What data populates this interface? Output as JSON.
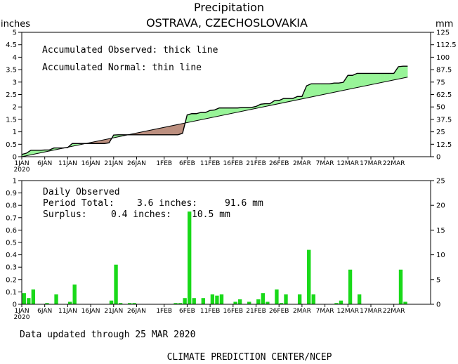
{
  "title": "Precipitation",
  "subtitle": "OSTRAVA, CZECHOSLOVAKIA",
  "updated": "Data updated through 25 MAR 2020",
  "credit": "CLIMATE PREDICTION CENTER/NCEP",
  "colors": {
    "surplus_fill": "#98f498",
    "deficit_fill": "#bc8f7f",
    "daily_bar": "#19d919"
  },
  "chart_data": [
    {
      "type": "area",
      "ylabel_left": "inches",
      "ylabel_right": "mm",
      "ylim": [
        0,
        5
      ],
      "ylim_right": [
        0,
        125
      ],
      "xlim": [
        0,
        89
      ],
      "yticks_left": [
        "0",
        "0.5",
        "1",
        "1.5",
        "2",
        "2.5",
        "3",
        "3.5",
        "4",
        "4.5",
        "5"
      ],
      "yticks_right": [
        "0",
        "12.5",
        "25",
        "37.5",
        "50",
        "62.5",
        "75",
        "87.5",
        "100",
        "112.5",
        "125"
      ],
      "x_tick_labels": [
        "1JAN",
        "6JAN",
        "11JAN",
        "16JAN",
        "21JAN",
        "26JAN",
        "1FEB",
        "6FEB",
        "11FEB",
        "16FEB",
        "21FEB",
        "26FEB",
        "2MAR",
        "7MAR",
        "12MAR",
        "17MAR",
        "22MAR"
      ],
      "x_tick_days": [
        0,
        5,
        10,
        15,
        20,
        25,
        31,
        36,
        41,
        46,
        51,
        56,
        61,
        66,
        71,
        76,
        81
      ],
      "year_label": "2020",
      "legend": [
        "Accumulated Observed: thick line",
        "Accumulated Normal: thin line"
      ],
      "series": [
        {
          "name": "Accumulated Observed",
          "x": [
            0,
            1,
            2,
            3,
            4,
            5,
            6,
            7,
            8,
            9,
            10,
            11,
            12,
            13,
            14,
            15,
            16,
            17,
            18,
            19,
            20,
            21,
            22,
            23,
            24,
            25,
            26,
            27,
            28,
            29,
            30,
            31,
            32,
            33,
            34,
            35,
            36,
            37,
            38,
            39,
            40,
            41,
            42,
            43,
            44,
            45,
            46,
            47,
            48,
            49,
            50,
            51,
            52,
            53,
            54,
            55,
            56,
            57,
            58,
            59,
            60,
            61,
            62,
            63,
            64,
            65,
            66,
            67,
            68,
            69,
            70,
            71,
            72,
            73,
            74,
            75,
            76,
            77,
            78,
            79,
            80,
            81,
            82,
            83,
            84
          ],
          "values": [
            0.09,
            0.14,
            0.26,
            0.26,
            0.26,
            0.27,
            0.27,
            0.35,
            0.35,
            0.35,
            0.37,
            0.53,
            0.53,
            0.53,
            0.53,
            0.53,
            0.53,
            0.53,
            0.53,
            0.56,
            0.87,
            0.88,
            0.88,
            0.88,
            0.88,
            0.88,
            0.88,
            0.88,
            0.88,
            0.88,
            0.88,
            0.88,
            0.88,
            0.88,
            0.88,
            0.94,
            1.68,
            1.73,
            1.73,
            1.78,
            1.78,
            1.86,
            1.88,
            1.96,
            1.96,
            1.96,
            1.96,
            1.96,
            1.98,
            1.98,
            1.98,
            2.02,
            2.11,
            2.13,
            2.13,
            2.25,
            2.26,
            2.34,
            2.34,
            2.34,
            2.42,
            2.42,
            2.85,
            2.93,
            2.93,
            2.93,
            2.93,
            2.93,
            2.96,
            2.96,
            2.99,
            3.27,
            3.27,
            3.35,
            3.35,
            3.35,
            3.35,
            3.35,
            3.35,
            3.35,
            3.35,
            3.35,
            3.62,
            3.64,
            3.64
          ]
        },
        {
          "name": "Accumulated Normal",
          "x": [
            0,
            84
          ],
          "values": [
            0.0,
            3.2
          ]
        }
      ]
    },
    {
      "type": "bar",
      "ylim": [
        0,
        1
      ],
      "ylim_right": [
        0,
        25
      ],
      "yticks_left": [
        "0",
        "0.1",
        "0.2",
        "0.3",
        "0.4",
        "0.5",
        "0.6",
        "0.7",
        "0.8",
        "0.9",
        "1"
      ],
      "yticks_right": [
        "0",
        "5",
        "10",
        "15",
        "20",
        "25"
      ],
      "annotation": {
        "heading": "Daily Observed",
        "period_label": "Period Total:",
        "period_inches": "3.6 inches:",
        "period_mm": "91.6 mm",
        "surplus_label": "Surplus:",
        "surplus_inches": "0.4 inches:",
        "surplus_mm": "10.5 mm"
      },
      "series": [
        {
          "name": "Daily Observed",
          "x": [
            0,
            1,
            2,
            3,
            4,
            5,
            6,
            7,
            8,
            9,
            10,
            11,
            12,
            13,
            14,
            15,
            16,
            17,
            18,
            19,
            20,
            21,
            22,
            23,
            24,
            25,
            26,
            27,
            28,
            29,
            30,
            31,
            32,
            33,
            34,
            35,
            36,
            37,
            38,
            39,
            40,
            41,
            42,
            43,
            44,
            45,
            46,
            47,
            48,
            49,
            50,
            51,
            52,
            53,
            54,
            55,
            56,
            57,
            58,
            59,
            60,
            61,
            62,
            63,
            64,
            65,
            66,
            67,
            68,
            69,
            70,
            71,
            72,
            73,
            74,
            75,
            76,
            77,
            78,
            79,
            80,
            81,
            82,
            83,
            84
          ],
          "values": [
            0.09,
            0.05,
            0.12,
            0,
            0,
            0.01,
            0,
            0.08,
            0,
            0,
            0.02,
            0.16,
            0,
            0,
            0,
            0,
            0,
            0,
            0,
            0.03,
            0.32,
            0.01,
            0,
            0.01,
            0.01,
            0,
            0,
            0,
            0,
            0,
            0,
            0,
            0,
            0.01,
            0.01,
            0.05,
            0.75,
            0.05,
            0,
            0.05,
            0,
            0.08,
            0.07,
            0.08,
            0,
            0,
            0.02,
            0.04,
            0,
            0.02,
            0,
            0.04,
            0.09,
            0.02,
            0,
            0.12,
            0.01,
            0.08,
            0,
            0,
            0.08,
            0,
            0.44,
            0.08,
            0,
            0,
            0,
            0,
            0.01,
            0.03,
            0,
            0.28,
            0,
            0.08,
            0,
            0,
            0,
            0,
            0,
            0,
            0,
            0,
            0.28,
            0.02,
            0
          ]
        }
      ]
    }
  ]
}
